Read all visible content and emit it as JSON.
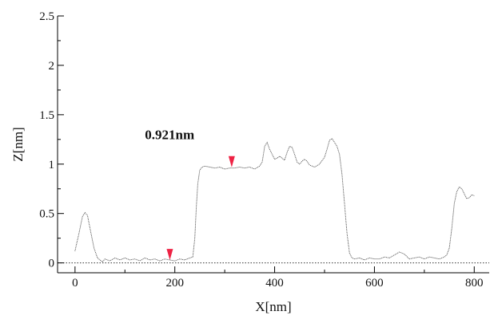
{
  "chart_data": {
    "type": "line",
    "title": "",
    "xlabel": "X[nm]",
    "ylabel": "Z[nm]",
    "xlim": [
      -35,
      830
    ],
    "ylim": [
      -0.1,
      2.5
    ],
    "x_ticks": [
      0,
      200,
      400,
      600,
      800
    ],
    "y_ticks": [
      0,
      0.5,
      1,
      1.5,
      2,
      2.5
    ],
    "x_tick_labels": [
      "0",
      "200",
      "400",
      "600",
      "800"
    ],
    "y_tick_labels": [
      "0",
      "0.5",
      "1",
      "1.5",
      "2",
      "2.5"
    ],
    "reference_line_z": 0,
    "series": [
      {
        "line_color": "#555555",
        "x": [
          0,
          8,
          15,
          20,
          25,
          30,
          38,
          45,
          55,
          60,
          70,
          80,
          90,
          100,
          110,
          120,
          130,
          140,
          150,
          160,
          170,
          180,
          190,
          200,
          210,
          220,
          230,
          236,
          240,
          243,
          246,
          250,
          255,
          260,
          270,
          280,
          290,
          300,
          310,
          320,
          330,
          340,
          350,
          360,
          370,
          375,
          380,
          385,
          390,
          395,
          400,
          405,
          410,
          420,
          425,
          430,
          435,
          440,
          445,
          450,
          455,
          460,
          465,
          470,
          475,
          480,
          490,
          500,
          505,
          510,
          515,
          520,
          525,
          530,
          535,
          540,
          545,
          550,
          555,
          560,
          570,
          580,
          590,
          600,
          610,
          620,
          630,
          640,
          650,
          660,
          670,
          680,
          690,
          700,
          710,
          720,
          730,
          740,
          745,
          750,
          755,
          760,
          765,
          770,
          775,
          780,
          785,
          790,
          795,
          800
        ],
        "y": [
          0.12,
          0.3,
          0.47,
          0.51,
          0.48,
          0.35,
          0.15,
          0.05,
          0.01,
          0.04,
          0.02,
          0.05,
          0.03,
          0.05,
          0.03,
          0.04,
          0.02,
          0.05,
          0.03,
          0.04,
          0.02,
          0.04,
          0.03,
          0.02,
          0.04,
          0.03,
          0.05,
          0.06,
          0.25,
          0.55,
          0.8,
          0.94,
          0.97,
          0.98,
          0.97,
          0.96,
          0.97,
          0.95,
          0.96,
          0.96,
          0.97,
          0.96,
          0.97,
          0.95,
          0.98,
          1.02,
          1.18,
          1.22,
          1.15,
          1.1,
          1.05,
          1.06,
          1.08,
          1.04,
          1.12,
          1.18,
          1.17,
          1.1,
          1.02,
          1.0,
          1.03,
          1.05,
          1.03,
          0.99,
          0.98,
          0.97,
          1.0,
          1.07,
          1.15,
          1.24,
          1.26,
          1.22,
          1.18,
          1.1,
          0.9,
          0.6,
          0.3,
          0.1,
          0.05,
          0.04,
          0.05,
          0.03,
          0.05,
          0.04,
          0.04,
          0.06,
          0.05,
          0.08,
          0.11,
          0.09,
          0.04,
          0.05,
          0.06,
          0.04,
          0.06,
          0.05,
          0.04,
          0.06,
          0.08,
          0.15,
          0.35,
          0.6,
          0.72,
          0.77,
          0.75,
          0.7,
          0.65,
          0.66,
          0.69,
          0.68
        ]
      }
    ],
    "markers": [
      {
        "x": 190,
        "y": 0.02,
        "color": "#ee2244"
      },
      {
        "x": 314,
        "y": 0.96,
        "color": "#ee2244"
      }
    ],
    "annotations": [
      {
        "text": "0.921nm",
        "x": 140,
        "y": 1.3
      }
    ]
  }
}
